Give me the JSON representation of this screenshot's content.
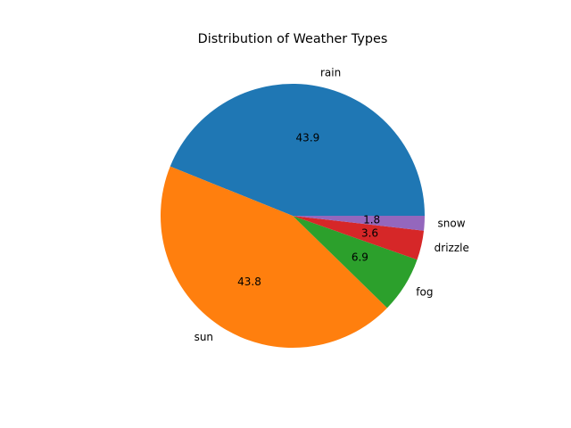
{
  "chart_data": {
    "type": "pie",
    "title": "Distribution of Weather Types",
    "categories": [
      "rain",
      "sun",
      "fog",
      "drizzle",
      "snow"
    ],
    "values": [
      43.9,
      43.8,
      6.9,
      3.6,
      1.8
    ],
    "colors": [
      "#1f77b4",
      "#ff7f0e",
      "#2ca02c",
      "#d62728",
      "#9467bd"
    ]
  }
}
